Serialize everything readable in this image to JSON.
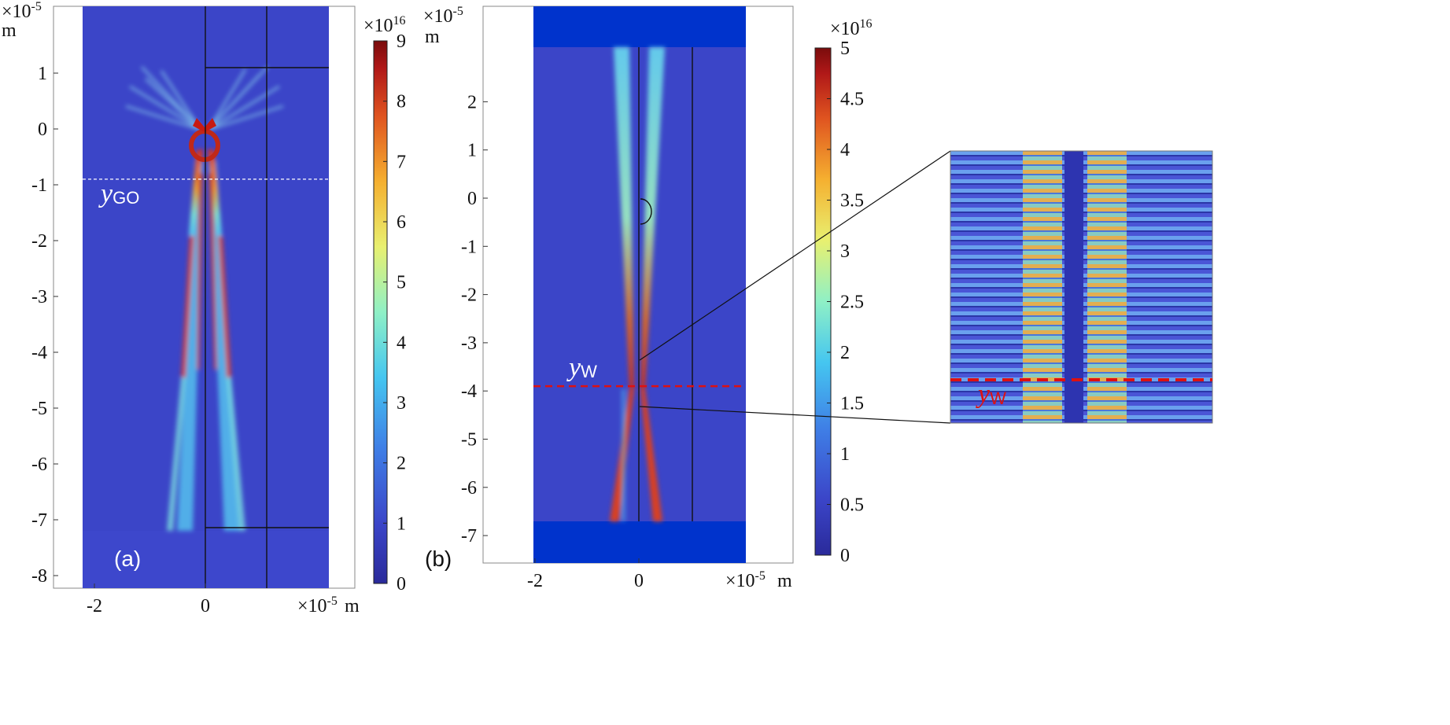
{
  "chart_data": [
    {
      "type": "heatmap",
      "panel_label": "(a)",
      "x_multiplier": "×10",
      "x_multiplier_exp": "-5",
      "x_unit": "m",
      "y_multiplier": "×10",
      "y_multiplier_exp": "-5",
      "y_unit": "m",
      "xticks": [
        "-2",
        "0"
      ],
      "yticks": [
        "1",
        "0",
        "-1",
        "-2",
        "-3",
        "-4",
        "-5",
        "-6",
        "-7",
        "-8"
      ],
      "xlim": [
        -2.5,
        2.3
      ],
      "ylim": [
        -8.3,
        2.2
      ],
      "line_label": "y",
      "line_label_sub": "GO",
      "line_value": -0.9,
      "colorbar": {
        "multiplier": "×10",
        "multiplier_exp": "16",
        "ticks": [
          "0",
          "1",
          "2",
          "3",
          "4",
          "5",
          "6",
          "7",
          "8",
          "9"
        ],
        "range": [
          0,
          9
        ]
      }
    },
    {
      "type": "heatmap",
      "panel_label": "(b)",
      "x_multiplier": "×10",
      "x_multiplier_exp": "-5",
      "x_unit": "m",
      "y_multiplier": "×10",
      "y_multiplier_exp": "-5",
      "y_unit": "m",
      "xticks": [
        "-2",
        "0"
      ],
      "yticks": [
        "2",
        "1",
        "0",
        "-1",
        "-2",
        "-3",
        "-4",
        "-5",
        "-6",
        "-7"
      ],
      "xlim": [
        -3,
        3
      ],
      "ylim": [
        -7.6,
        4
      ],
      "line_label": "y",
      "line_label_sub": "W",
      "line_value": -3.9,
      "colorbar": {
        "multiplier": "×10",
        "multiplier_exp": "16",
        "ticks": [
          "0",
          "0.5",
          "1",
          "1.5",
          "2",
          "2.5",
          "3",
          "3.5",
          "4",
          "4.5",
          "5"
        ],
        "range": [
          0,
          5
        ]
      },
      "inset": {
        "line_label": "y",
        "line_label_sub": "W"
      }
    }
  ],
  "colors": {
    "background_field": "#3b45c8",
    "pml_blue": "#0033cc",
    "guide_line_a": "#ffffff",
    "guide_line_b": "#dd1111",
    "colormap": [
      "#2a2a9a",
      "#3b45c8",
      "#3f7fe6",
      "#45c6f0",
      "#8ff0c6",
      "#e8f070",
      "#f5b030",
      "#e05520",
      "#b01818",
      "#7a0c0c"
    ]
  }
}
